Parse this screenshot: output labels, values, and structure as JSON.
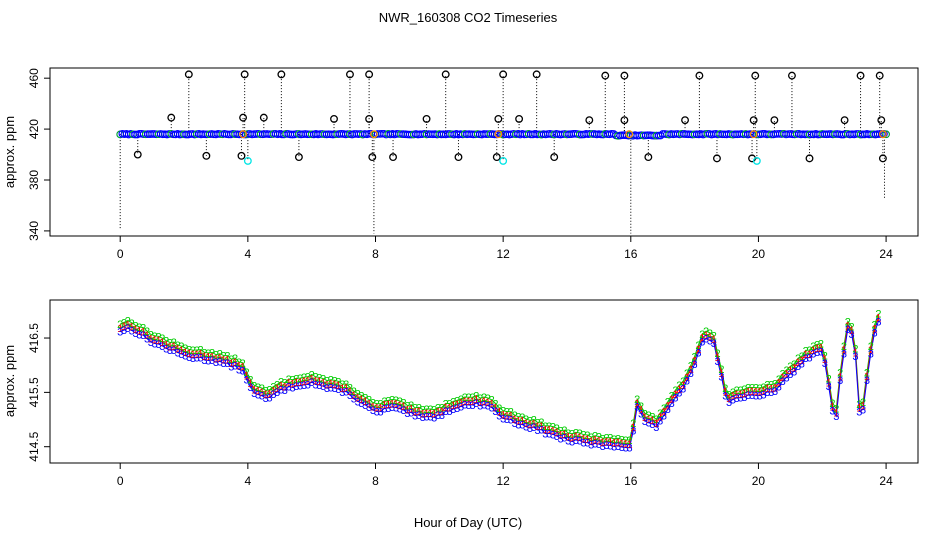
{
  "title": "NWR_160308  CO2 Timeseries",
  "xlabel": "Hour of Day (UTC)",
  "colors": {
    "black": "#000000",
    "blue": "#0000ff",
    "cyan": "#00e5e5",
    "green": "#00cc00",
    "red": "#ff0000",
    "orange": "#ff8c00"
  },
  "chart_data": [
    {
      "type": "scatter",
      "name": "top-panel",
      "ylabel": "approx. ppm",
      "xlim": [
        -2.2,
        25
      ],
      "ylim": [
        336,
        468
      ],
      "xticks": [
        "0",
        "4",
        "8",
        "12",
        "16",
        "20",
        "24"
      ],
      "yticks": [
        "340",
        "380",
        "420",
        "460"
      ],
      "baseline_ppm": 416,
      "series": [
        {
          "name": "flagged-high",
          "color": "black",
          "x": [
            2.15,
            3.9,
            5.05,
            7.2,
            7.8,
            10.2,
            12.0,
            13.05,
            15.2,
            15.8,
            18.15,
            19.9,
            21.05,
            23.2,
            23.8
          ],
          "y": [
            463,
            463,
            463,
            463,
            463,
            463,
            463,
            463,
            462,
            462,
            462,
            462,
            462,
            462,
            462
          ]
        },
        {
          "name": "flagged-mid",
          "color": "black",
          "x": [
            1.6,
            3.85,
            4.5,
            6.7,
            7.8,
            9.6,
            11.85,
            12.5,
            14.7,
            15.8,
            17.7,
            19.85,
            20.5,
            22.7,
            23.85
          ],
          "y": [
            429,
            429,
            429,
            428,
            428,
            428,
            428,
            428,
            427,
            427,
            427,
            427,
            427,
            427,
            427
          ]
        },
        {
          "name": "flagged-low",
          "color": "black",
          "x": [
            0.55,
            2.7,
            3.8,
            5.6,
            7.9,
            8.55,
            10.6,
            11.8,
            13.6,
            16.55,
            18.7,
            19.8,
            21.6,
            23.9
          ],
          "y": [
            400,
            399,
            399,
            398,
            398,
            398,
            398,
            398,
            398,
            398,
            397,
            397,
            397,
            397
          ]
        },
        {
          "name": "cyan-low",
          "color": "cyan",
          "x": [
            4.0,
            12.0,
            19.95
          ],
          "y": [
            395,
            395,
            395
          ]
        }
      ],
      "drops": [
        {
          "x": 0.0,
          "y_from": 416,
          "y_to": 342
        },
        {
          "x": 7.95,
          "y_from": 416,
          "y_to": 338
        },
        {
          "x": 16.0,
          "y_from": 414,
          "y_to": 338
        },
        {
          "x": 23.95,
          "y_from": 414,
          "y_to": 366
        }
      ]
    },
    {
      "type": "line",
      "name": "bottom-panel",
      "ylabel": "approx. ppm",
      "xlim": [
        -2.2,
        25
      ],
      "ylim": [
        414.2,
        417.2
      ],
      "xticks": [
        "0",
        "4",
        "8",
        "12",
        "16",
        "20",
        "24"
      ],
      "yticks": [
        "414.5",
        "415.5",
        "416.5"
      ],
      "markers": [
        "1",
        "2",
        "3"
      ],
      "series": [
        {
          "name": "mean",
          "hours": [
            0,
            0.3,
            1,
            2,
            3,
            3.8,
            4.2,
            4.6,
            5,
            5.5,
            6,
            6.5,
            7,
            7.5,
            8,
            8.5,
            9,
            9.5,
            10,
            10.5,
            11,
            11.5,
            12,
            12.5,
            13,
            13.5,
            14,
            14.5,
            15,
            15.5,
            16,
            16.2,
            16.5,
            16.8,
            17.2,
            17.6,
            18,
            18.3,
            18.6,
            19,
            19.5,
            20,
            20.5,
            21,
            21.5,
            22,
            22.2,
            22.4,
            22.6,
            22.8,
            23.0,
            23.2,
            23.4,
            23.6,
            23.8
          ],
          "values": [
            416.7,
            416.75,
            416.5,
            416.25,
            416.15,
            416.0,
            415.55,
            415.45,
            415.6,
            415.7,
            415.75,
            415.65,
            415.6,
            415.4,
            415.2,
            415.3,
            415.2,
            415.1,
            415.15,
            415.3,
            415.35,
            415.35,
            415.1,
            415.0,
            414.9,
            414.8,
            414.7,
            414.65,
            414.6,
            414.6,
            414.55,
            415.3,
            415.0,
            414.95,
            415.3,
            415.6,
            416.1,
            416.6,
            416.5,
            415.4,
            415.5,
            415.5,
            415.6,
            415.9,
            416.2,
            416.35,
            415.7,
            414.9,
            416.0,
            416.75,
            416.6,
            414.9,
            415.8,
            416.6,
            416.95
          ]
        }
      ]
    }
  ]
}
